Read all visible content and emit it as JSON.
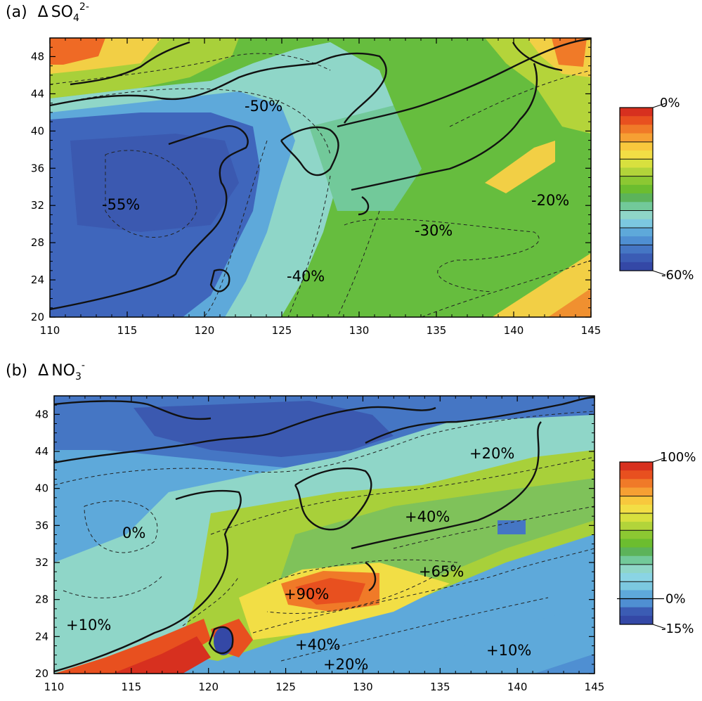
{
  "panels": [
    {
      "id": "a",
      "title_prefix": "(a)",
      "title_symbol": "Δ",
      "title_species": "SO",
      "title_sub": "4",
      "title_sup": "2-",
      "x_ticks": [
        "110",
        "115",
        "120",
        "125",
        "130",
        "135",
        "140",
        "145"
      ],
      "y_ticks": [
        "20",
        "24",
        "28",
        "32",
        "36",
        "40",
        "44",
        "48"
      ],
      "annotations": [
        "-50%",
        "-55%",
        "-40%",
        "-30%",
        "-20%"
      ],
      "colorbar": {
        "top_label": "0%",
        "bottom_label": "-60%",
        "colors": [
          "#d7301f",
          "#e8501f",
          "#f07a28",
          "#f6a033",
          "#f8c83d",
          "#f2de45",
          "#d8e03e",
          "#b2d43a",
          "#8cc832",
          "#6cbd2f",
          "#5cb35a",
          "#72c99a",
          "#8fd6c8",
          "#7cc8e0",
          "#5ea9da",
          "#4f8fd2",
          "#4576c4",
          "#3b5cb4",
          "#3448a6"
        ]
      }
    },
    {
      "id": "b",
      "title_prefix": "(b)",
      "title_symbol": "Δ",
      "title_species": "NO",
      "title_sub": "3",
      "title_sup": "-",
      "x_ticks": [
        "110",
        "115",
        "120",
        "125",
        "130",
        "135",
        "140",
        "145"
      ],
      "y_ticks": [
        "20",
        "24",
        "28",
        "32",
        "36",
        "40",
        "44",
        "48"
      ],
      "annotations": [
        "+20%",
        "+40%",
        "0%",
        "+65%",
        "+90%",
        "+10%",
        "+40%",
        "+20%",
        "+10%"
      ],
      "colorbar": {
        "top_label": "100%",
        "mid_label": "0%",
        "bottom_label": "-15%",
        "colors": [
          "#d7301f",
          "#e8501f",
          "#f07a28",
          "#f6a033",
          "#f8c83d",
          "#f2de45",
          "#d8e03e",
          "#b2d43a",
          "#8cc832",
          "#6cbd2f",
          "#5cb35a",
          "#72c99a",
          "#8fd6c8",
          "#8ad4e4",
          "#7cc8e0",
          "#5ea9da",
          "#4f8fd2",
          "#3b5cb4",
          "#3448a6"
        ]
      }
    }
  ]
}
